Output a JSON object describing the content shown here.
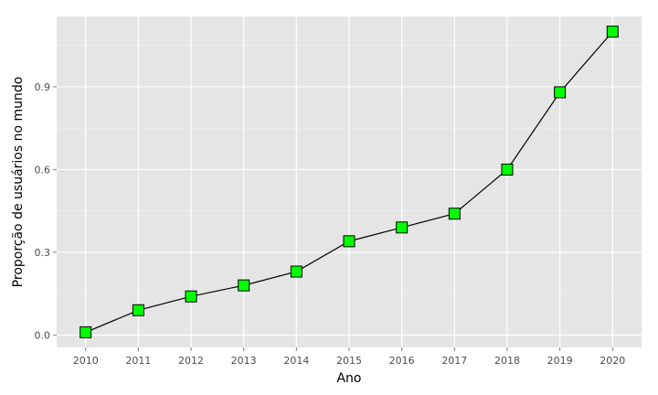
{
  "chart_data": {
    "type": "line",
    "title": "",
    "xlabel": "Ano",
    "ylabel": "Proporção de usuários no mundo",
    "x": [
      2010,
      2011,
      2012,
      2013,
      2014,
      2015,
      2016,
      2017,
      2018,
      2019,
      2020
    ],
    "series": [
      {
        "values": [
          0.01,
          0.09,
          0.14,
          0.18,
          0.23,
          0.34,
          0.39,
          0.44,
          0.6,
          0.88,
          1.1
        ]
      }
    ],
    "xticks": [
      "2010",
      "2011",
      "2012",
      "2013",
      "2014",
      "2015",
      "2016",
      "2017",
      "2018",
      "2019",
      "2020"
    ],
    "yticks": [
      "0.0",
      "0.3",
      "0.6",
      "0.9"
    ],
    "ytick_values": [
      0.0,
      0.3,
      0.6,
      0.9
    ],
    "xlim": [
      2009.45,
      2020.55
    ],
    "ylim": [
      -0.045,
      1.155
    ],
    "grid": true,
    "legend": "none",
    "colors": {
      "panel_background": "#e5e5e5",
      "grid_major": "#ffffff",
      "grid_minor": "#f2f2f2",
      "line": "#000000",
      "marker_fill": "#00ff00",
      "marker_stroke": "#000000"
    }
  }
}
